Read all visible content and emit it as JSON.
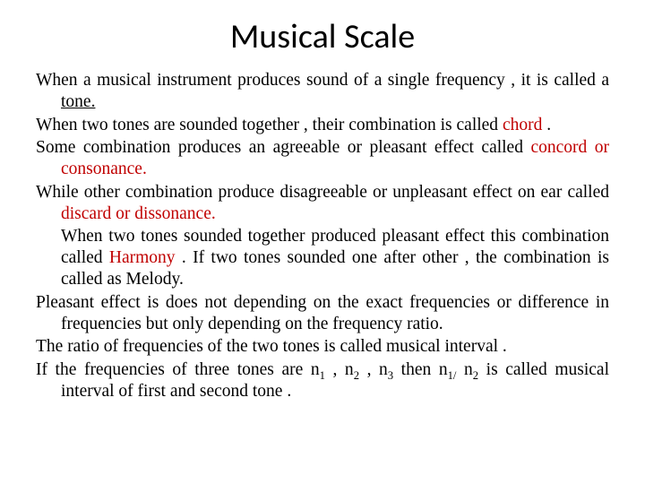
{
  "colors": {
    "background": "#ffffff",
    "text": "#000000",
    "accent": "#c00000"
  },
  "title": "Musical Scale",
  "body": {
    "p1a": "When a musical instrument produces sound of a single frequency , it is called a ",
    "p1_term": "tone.",
    "p2a": "When two tones are sounded together , their combination is called ",
    "p2_term": "chord",
    "p2b": " .",
    "p3a": "Some combination produces an agreeable or pleasant effect called ",
    "p3_term": "concord or consonance.",
    "p4a": "While other combination produce disagreeable or unpleasant effect on ear called ",
    "p4_term": "discard or dissonance.",
    "p5a": "When two tones sounded together produced pleasant effect this combination called ",
    "p5_term": "Harmony",
    "p5b": " . If two tones sounded one after other , the combination is called as Melody.",
    "p6": "Pleasant effect is does not depending on the exact frequencies or difference in frequencies but only depending on the frequency ratio.",
    "p7": "The ratio of frequencies of the two tones is called musical interval .",
    "p8a": "If the  frequencies of three tones are n",
    "p8b": " , n",
    "p8c": " , n",
    "p8d": " then n",
    "p8e": " n",
    "p8f": " is called musical interval of first and second tone .",
    "sub1": "1",
    "sub2": "2",
    "sub3": "3",
    "sub1slash": "1/"
  }
}
